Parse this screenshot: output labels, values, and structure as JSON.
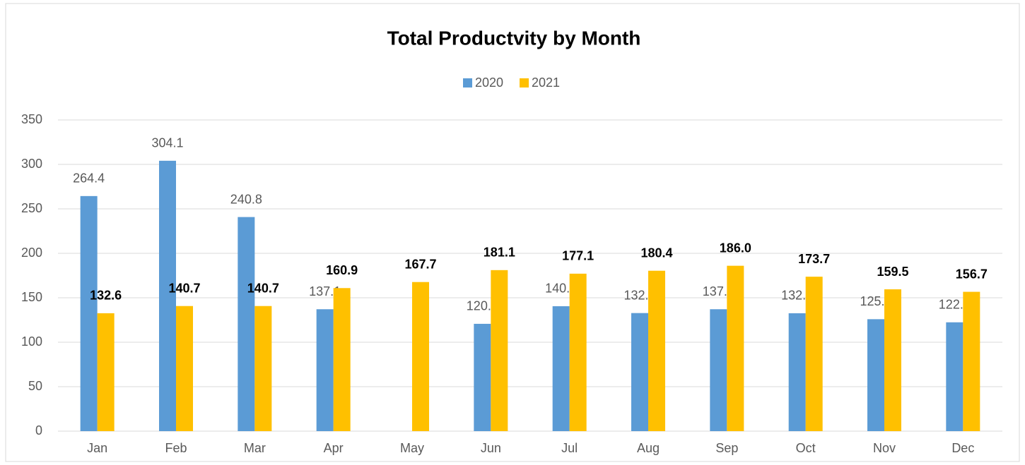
{
  "chart_data": {
    "type": "bar",
    "title": "Total Productvity by Month",
    "categories": [
      "Jan",
      "Feb",
      "Mar",
      "Apr",
      "May",
      "Jun",
      "Jul",
      "Aug",
      "Sep",
      "Oct",
      "Nov",
      "Dec"
    ],
    "series": [
      {
        "name": "2020",
        "color": "#5b9bd5",
        "values": [
          264.4,
          304.1,
          240.8,
          137.1,
          null,
          120.7,
          140.5,
          132.8,
          137.1,
          132.6,
          125.9,
          122.4
        ],
        "value_labels": [
          "264.4",
          "304.1",
          "240.8",
          "137.1",
          null,
          "120.7",
          "140.5",
          "132.8",
          "137.1",
          "132.6",
          "125.9",
          "122.4"
        ]
      },
      {
        "name": "2021",
        "color": "#ffc000",
        "values": [
          132.6,
          140.7,
          140.7,
          160.9,
          167.7,
          181.1,
          177.1,
          180.4,
          186,
          173.7,
          159.5,
          156.7
        ],
        "value_labels": [
          "132.6",
          "140.7",
          "140.7",
          "160.9",
          "167.7",
          "181.1",
          "177.1",
          "180.4",
          "186.0",
          "173.7",
          "159.5",
          "156.7"
        ]
      }
    ],
    "ylim": [
      0,
      350
    ],
    "yticks": [
      0,
      50,
      100,
      150,
      200,
      250,
      300,
      350
    ],
    "grid": true,
    "legend": "top"
  }
}
